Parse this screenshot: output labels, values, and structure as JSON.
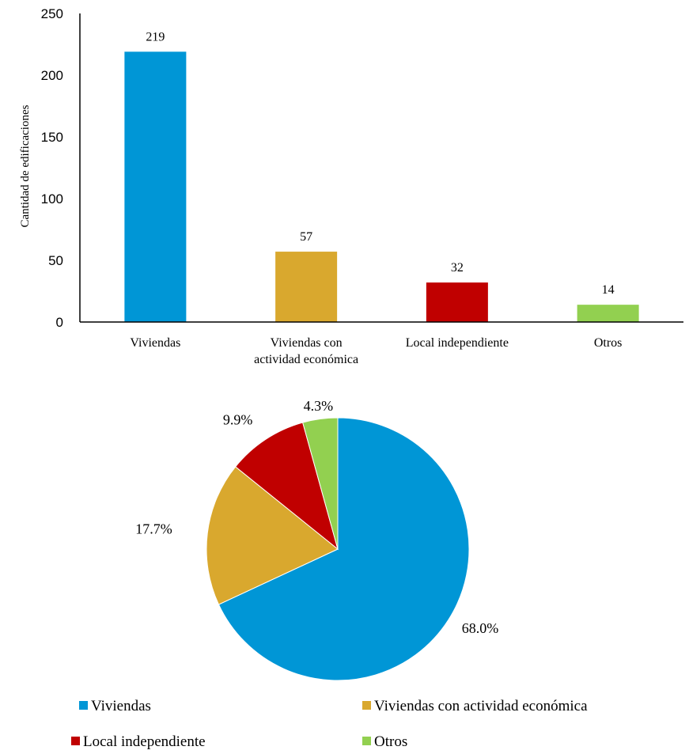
{
  "chart_data": [
    {
      "type": "bar",
      "ylabel": "Cantidad de edificaciones",
      "ylim": [
        0,
        250
      ],
      "yticks": [
        0,
        50,
        100,
        150,
        200,
        250
      ],
      "categories": [
        [
          "Viviendas"
        ],
        [
          "Viviendas con",
          "actividad económica"
        ],
        [
          "Local independiente"
        ],
        [
          "Otros"
        ]
      ],
      "values": [
        219,
        57,
        32,
        14
      ],
      "data_labels": [
        "219",
        "57",
        "32",
        "14"
      ],
      "colors": [
        "#0096D6",
        "#D9A82E",
        "#C00000",
        "#92D050"
      ],
      "grid": false
    },
    {
      "type": "pie",
      "labels": [
        "Viviendas",
        "Viviendas con actividad económica",
        "Local independiente",
        "Otros"
      ],
      "values": [
        68.0,
        17.7,
        9.9,
        4.3
      ],
      "data_labels": [
        "68.0%",
        "17.7%",
        "9.9%",
        "4.3%"
      ],
      "colors": [
        "#0096D6",
        "#D9A82E",
        "#C00000",
        "#92D050"
      ],
      "legend_position": "bottom"
    }
  ]
}
